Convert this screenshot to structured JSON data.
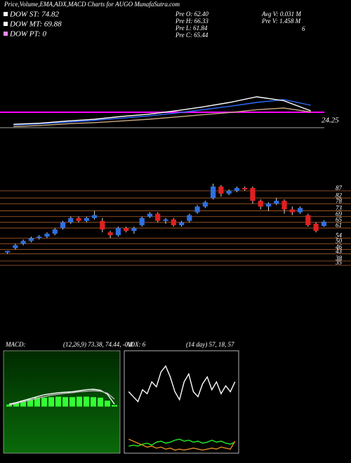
{
  "header": {
    "title": "Price,Volume,EMA,ADX,MACD Charts for AUGO MunafaSutra.com",
    "legend": [
      "DOW ST: 74.82",
      "DOW MT: 69.88",
      "DOW PT: 0"
    ],
    "stats": [
      "Pre O: 62.40",
      "Pre H: 66.33",
      "Pre L: 61.84",
      "Pre C: 65.44",
      "Avg V: 0.031 M",
      "Pre V: 1.458 M"
    ],
    "note": "6"
  },
  "chart_data": [
    {
      "type": "line",
      "ylim": [
        0,
        100
      ],
      "annotation": "24.25",
      "levels": [
        37.5,
        10
      ],
      "level_colors": [
        "#ff00ff",
        "#dddddd"
      ],
      "series": [
        {
          "color": "#2f6bff",
          "values": [
            15,
            17,
            20,
            23,
            27,
            31,
            36,
            42,
            48,
            55,
            60,
            50
          ]
        },
        {
          "color": "#ffffff",
          "values": [
            16,
            18,
            22,
            25,
            30,
            34,
            40,
            47,
            55,
            65,
            58,
            40
          ]
        },
        {
          "color": "#c8a882",
          "values": [
            12,
            14,
            17,
            19,
            22,
            25,
            29,
            33,
            37,
            42,
            45,
            38
          ]
        }
      ]
    },
    {
      "type": "candlestick",
      "ylim": [
        29.2,
        91.9
      ],
      "up_color": "#2f6fe0",
      "down_color": "#e02020",
      "grid_color": "#b0602c",
      "yticks": [
        87,
        82,
        78,
        73,
        69,
        65,
        61,
        54,
        50,
        46,
        43,
        38,
        35
      ],
      "open": [
        44,
        47,
        50,
        52,
        54,
        55,
        57,
        61,
        65,
        68,
        66,
        68,
        66,
        58,
        56,
        61,
        59,
        63,
        69,
        71,
        66,
        67,
        63,
        66,
        72,
        76,
        82,
        90,
        85,
        87,
        89,
        89,
        80,
        76,
        78,
        80,
        74,
        72,
        70,
        64,
        62.4
      ],
      "high": [
        45,
        50,
        53,
        55,
        56,
        58,
        61,
        66,
        69,
        69,
        69,
        73,
        68,
        59,
        62,
        62,
        62,
        69,
        72,
        72,
        68,
        68,
        66,
        71,
        77,
        80,
        92,
        91,
        88,
        90,
        90,
        90,
        81,
        79,
        82,
        81,
        76,
        76,
        71,
        65,
        66.33
      ],
      "low": [
        43,
        46,
        49,
        51,
        53,
        54,
        56,
        60,
        64,
        65,
        65,
        67,
        58,
        54,
        55,
        58,
        57,
        62,
        68,
        65,
        64,
        62,
        62,
        65,
        71,
        75,
        81,
        83,
        84,
        86,
        87,
        78,
        74,
        73,
        77,
        71,
        70,
        71,
        62,
        58,
        61.84
      ],
      "close": [
        45,
        49,
        52,
        54,
        55,
        57,
        60,
        65,
        68,
        66,
        68,
        70,
        60,
        56,
        61,
        59,
        61,
        68,
        71,
        66,
        67,
        63,
        65,
        70,
        76,
        79,
        90,
        85,
        87,
        89,
        88,
        80,
        76,
        78,
        80,
        74,
        72,
        75,
        63,
        59,
        65.44
      ]
    },
    {
      "type": "line",
      "label": "MACD:",
      "params": "(12,26,9) 73.38, 74.44, -0.8",
      "ylim": [
        -9,
        11
      ],
      "histogram_color": "#33ff33",
      "histogram": [
        0.4,
        0.8,
        1.2,
        1.5,
        1.8,
        1.8,
        1.9,
        2.0,
        1.9,
        1.9,
        2.0,
        2.0,
        1.9,
        1.8,
        1.2,
        0.3
      ],
      "series": [
        {
          "color": "#ffffff",
          "values": [
            0.5,
            0.8,
            1.2,
            1.6,
            2.0,
            2.4,
            2.6,
            2.8,
            2.9,
            3.0,
            3.2,
            3.4,
            3.5,
            3.3,
            2.5,
            0.5
          ]
        },
        {
          "color": "#bbbbbb",
          "values": [
            0.3,
            0.6,
            1.0,
            1.3,
            1.7,
            2.0,
            2.3,
            2.5,
            2.7,
            2.8,
            3.0,
            3.1,
            3.2,
            3.1,
            2.7,
            1.5
          ]
        }
      ]
    },
    {
      "type": "line",
      "label": "ADX: 6",
      "params": "(14 day) 57, 18, 57",
      "ylim": [
        0,
        100
      ],
      "series": [
        {
          "color": "#ffffff",
          "values": [
            60,
            55,
            50,
            62,
            58,
            70,
            65,
            80,
            86,
            75,
            60,
            52,
            70,
            78,
            60,
            55,
            68,
            75,
            62,
            70,
            58,
            66,
            60,
            70
          ]
        },
        {
          "color": "#22ee22",
          "values": [
            5,
            6,
            5,
            7,
            8,
            6,
            9,
            10,
            8,
            9,
            11,
            12,
            10,
            11,
            9,
            10,
            8,
            9,
            11,
            9,
            10,
            8,
            7,
            9
          ]
        },
        {
          "color": "#e08a20",
          "values": [
            12,
            10,
            8,
            6,
            4,
            5,
            3,
            4,
            2,
            3,
            1,
            2,
            1,
            2,
            3,
            2,
            1,
            2,
            3,
            2,
            4,
            3,
            2,
            10
          ]
        }
      ]
    }
  ]
}
